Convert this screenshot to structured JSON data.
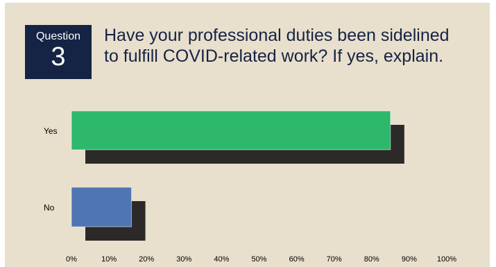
{
  "question": {
    "word": "Question",
    "number": "3",
    "title_line1": "Have your professional duties been sidelined",
    "title_line2": "to fulfill COVID-related work? If yes, explain."
  },
  "colors": {
    "background": "#e8dfcc",
    "badge": "#152345",
    "title_text": "#152345",
    "shadow": "#1a1a1a"
  },
  "chart_data": {
    "type": "bar",
    "orientation": "horizontal",
    "categories": [
      "Yes",
      "No"
    ],
    "values": [
      85,
      16
    ],
    "bar_colors": [
      "#2db86c",
      "#4f76b3"
    ],
    "xlim": [
      0,
      100
    ],
    "x_ticks": [
      "0%",
      "10%",
      "20%",
      "30%",
      "40%",
      "50%",
      "60%",
      "70%",
      "80%",
      "90%",
      "100%"
    ],
    "grid": false,
    "legend": "none"
  }
}
